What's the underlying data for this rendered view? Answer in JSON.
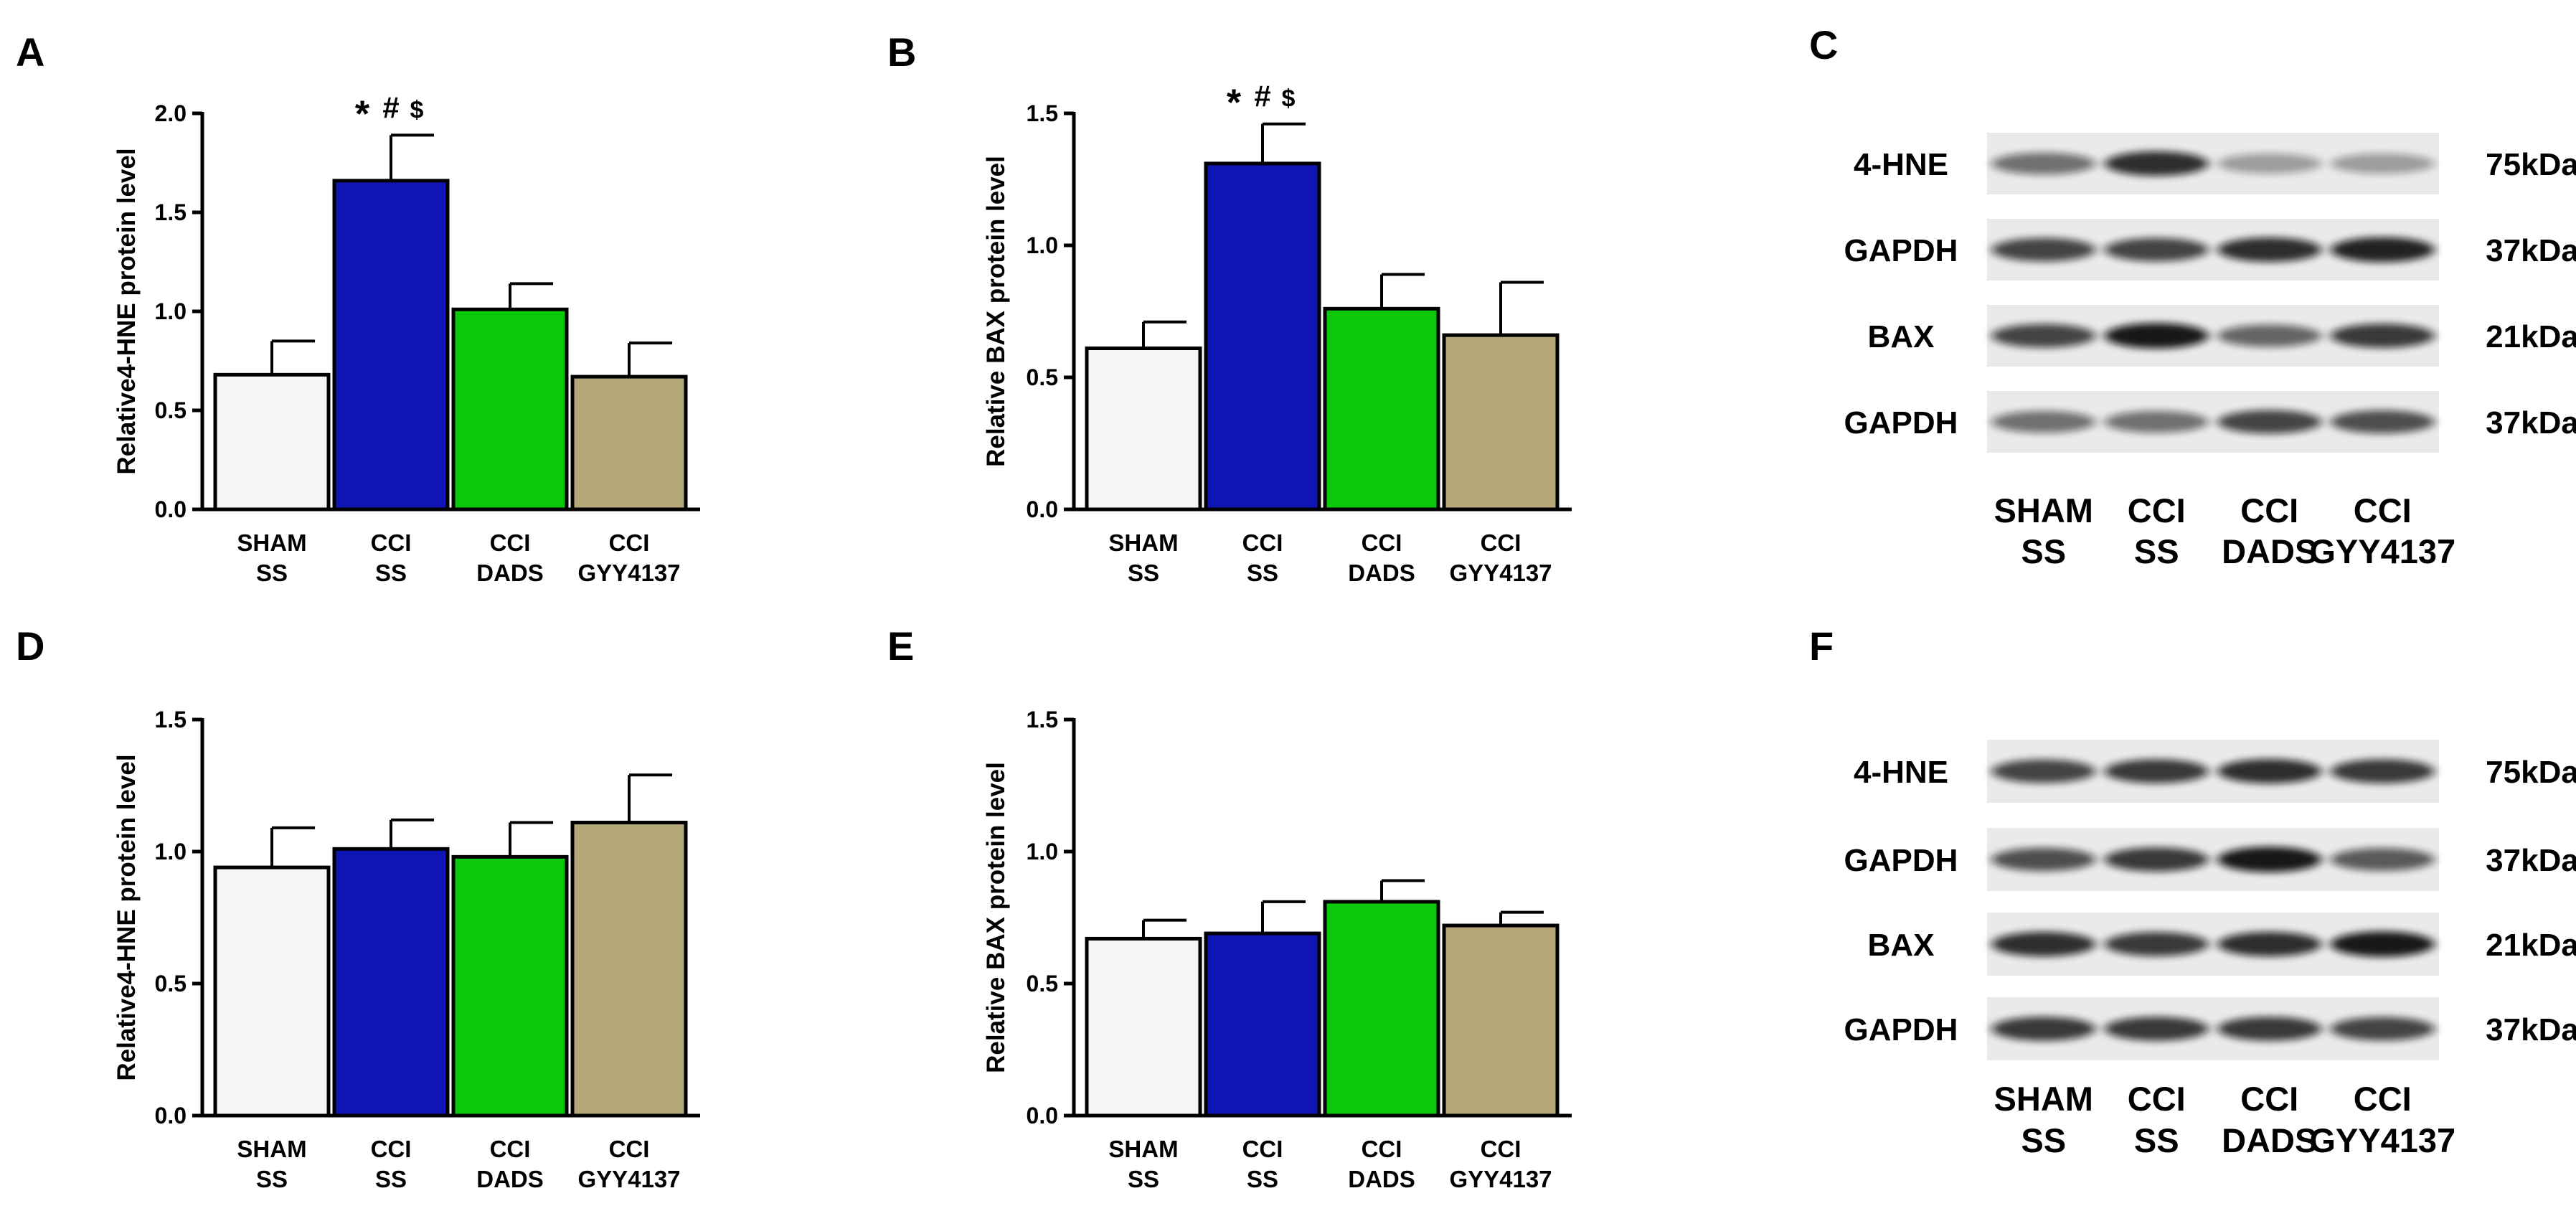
{
  "panels": {
    "a": {
      "letter": "A"
    },
    "b": {
      "letter": "B"
    },
    "c": {
      "letter": "C"
    },
    "d": {
      "letter": "D"
    },
    "e": {
      "letter": "E"
    },
    "f": {
      "letter": "F"
    }
  },
  "categories": [
    {
      "line1": "SHAM",
      "line2": "SS"
    },
    {
      "line1": "CCI",
      "line2": "SS"
    },
    {
      "line1": "CCI",
      "line2": "DADS"
    },
    {
      "line1": "CCI",
      "line2": "GYY4137"
    }
  ],
  "colors": {
    "sham_ss": "#f5f5f5",
    "cci_ss": "#0f14b4",
    "cci_dads": "#0ac80a",
    "cci_gyy4137": "#b4a878"
  },
  "chart_data": [
    {
      "panel": "A",
      "type": "bar",
      "categories": [
        "SHAM SS",
        "CCI SS",
        "CCI DADS",
        "CCI GYY4137"
      ],
      "values": [
        0.68,
        1.66,
        1.01,
        0.67
      ],
      "errors": [
        0.17,
        0.23,
        0.13,
        0.17
      ],
      "ylabel": "Relative4-HNE protein level",
      "ylim": [
        0,
        2.0
      ],
      "yticks": [
        "0.0",
        "0.5",
        "1.0",
        "1.5",
        "2.0"
      ],
      "annotations": [
        {
          "category": "CCI SS",
          "marks": [
            "*",
            "#",
            "$"
          ]
        }
      ]
    },
    {
      "panel": "B",
      "type": "bar",
      "categories": [
        "SHAM SS",
        "CCI SS",
        "CCI DADS",
        "CCI GYY4137"
      ],
      "values": [
        0.61,
        1.31,
        0.76,
        0.66
      ],
      "errors": [
        0.1,
        0.15,
        0.13,
        0.2
      ],
      "ylabel": "Relative BAX protein level",
      "ylim": [
        0,
        1.5
      ],
      "yticks": [
        "0.0",
        "0.5",
        "1.0",
        "1.5"
      ],
      "annotations": [
        {
          "category": "CCI SS",
          "marks": [
            "*",
            "#",
            "$"
          ]
        }
      ]
    },
    {
      "panel": "D",
      "type": "bar",
      "categories": [
        "SHAM SS",
        "CCI SS",
        "CCI DADS",
        "CCI GYY4137"
      ],
      "values": [
        0.94,
        1.01,
        0.98,
        1.11
      ],
      "errors": [
        0.15,
        0.11,
        0.13,
        0.18
      ],
      "ylabel": "Relative4-HNE protein level",
      "ylim": [
        0,
        1.5
      ],
      "yticks": [
        "0.0",
        "0.5",
        "1.0",
        "1.5"
      ],
      "annotations": []
    },
    {
      "panel": "E",
      "type": "bar",
      "categories": [
        "SHAM SS",
        "CCI SS",
        "CCI DADS",
        "CCI GYY4137"
      ],
      "values": [
        0.67,
        0.69,
        0.81,
        0.72
      ],
      "errors": [
        0.07,
        0.12,
        0.08,
        0.05
      ],
      "ylabel": "Relative BAX protein level",
      "ylim": [
        0,
        1.5
      ],
      "yticks": [
        "0.0",
        "0.5",
        "1.0",
        "1.5"
      ],
      "annotations": []
    }
  ],
  "blots": [
    {
      "panel": "C",
      "rows": [
        {
          "label": "4-HNE",
          "size": "75kDa",
          "intensity": [
            0.55,
            0.85,
            0.35,
            0.35
          ]
        },
        {
          "label": "GAPDH",
          "size": "37kDa",
          "intensity": [
            0.75,
            0.75,
            0.85,
            0.9
          ]
        },
        {
          "label": "BAX",
          "size": "21kDa",
          "intensity": [
            0.75,
            0.95,
            0.6,
            0.8
          ]
        },
        {
          "label": "GAPDH",
          "size": "37kDa",
          "intensity": [
            0.55,
            0.55,
            0.75,
            0.7
          ]
        }
      ]
    },
    {
      "panel": "F",
      "rows": [
        {
          "label": "4-HNE",
          "size": "75kDa",
          "intensity": [
            0.75,
            0.8,
            0.85,
            0.8
          ]
        },
        {
          "label": "GAPDH",
          "size": "37kDa",
          "intensity": [
            0.7,
            0.8,
            0.95,
            0.65
          ]
        },
        {
          "label": "BAX",
          "size": "21kDa",
          "intensity": [
            0.85,
            0.8,
            0.85,
            0.95
          ]
        },
        {
          "label": "GAPDH",
          "size": "37kDa",
          "intensity": [
            0.8,
            0.8,
            0.8,
            0.75
          ]
        }
      ]
    }
  ]
}
